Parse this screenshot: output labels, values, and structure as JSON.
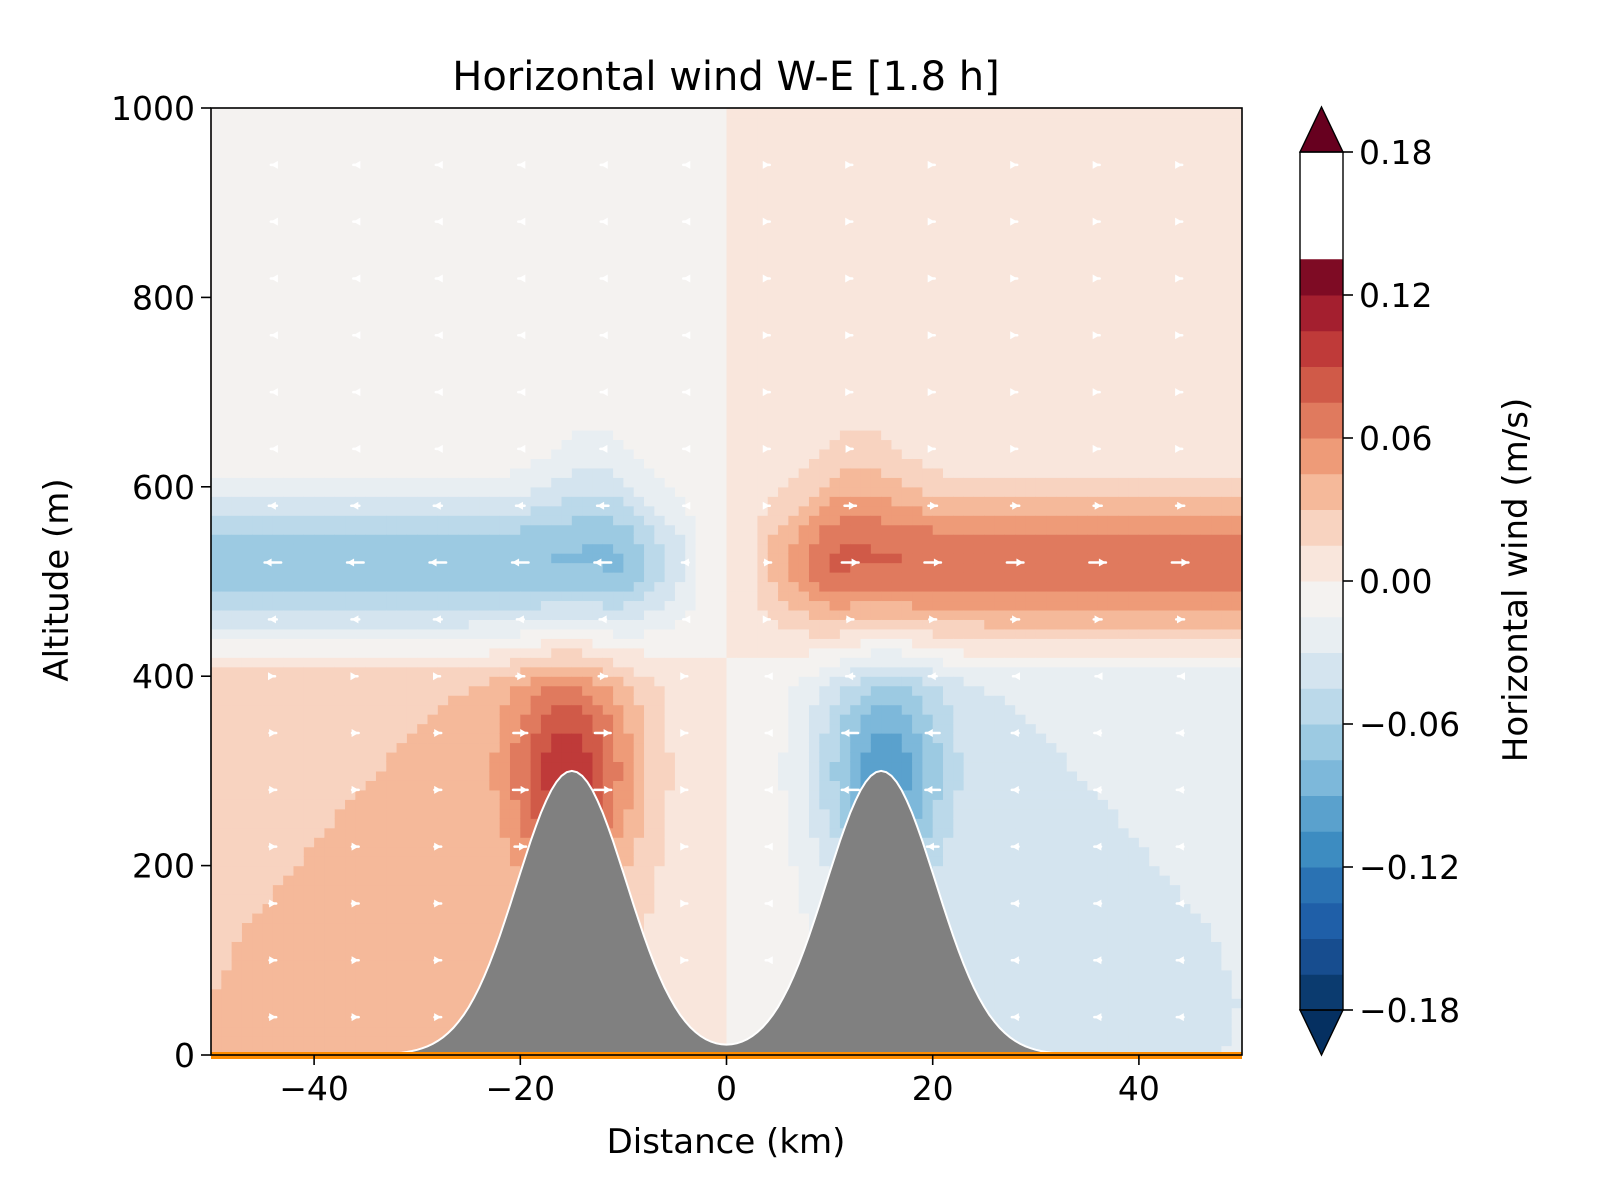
{
  "chart_data": {
    "type": "heatmap",
    "title": "Horizontal wind W-E [1.8 h]",
    "xlabel": "Distance (km)",
    "ylabel": "Altitude (m)",
    "xlim": [
      -50,
      50
    ],
    "ylim": [
      0,
      1000
    ],
    "xticks": [
      -40,
      -20,
      0,
      20,
      40
    ],
    "xtick_labels": [
      "−40",
      "−20",
      "0",
      "20",
      "40"
    ],
    "yticks": [
      0,
      200,
      400,
      600,
      800,
      1000
    ],
    "ytick_labels": [
      "0",
      "200",
      "400",
      "600",
      "800",
      "1000"
    ],
    "grid": false,
    "colorbar": {
      "label": "Horizontal wind (m/s)",
      "range": [
        -0.18,
        0.18
      ],
      "extend": "both",
      "levels": [
        -0.18,
        -0.165,
        -0.15,
        -0.135,
        -0.12,
        -0.105,
        -0.09,
        -0.075,
        -0.06,
        -0.045,
        -0.03,
        -0.015,
        0.0,
        0.015,
        0.03,
        0.045,
        0.06,
        0.075,
        0.09,
        0.105,
        0.12,
        0.135,
        0.15,
        0.165,
        0.18
      ],
      "colors": [
        "#0b3b6f",
        "#174d8f",
        "#1f5fa8",
        "#2a72b3",
        "#3d8cc1",
        "#5aa1cd",
        "#7db8da",
        "#9ccae2",
        "#bbd9ea",
        "#d4e4ef",
        "#e8eef2",
        "#f4f2f0",
        "#f9e6dc",
        "#f8d3c0",
        "#f5b99a",
        "#ee9b78",
        "#e07a5e",
        "#d05a48",
        "#bf3a39",
        "#a41f2f",
        "#7e0b24"
      ],
      "over_color": "#67001f",
      "under_color": "#053061",
      "tick_values": [
        -0.18,
        -0.12,
        -0.06,
        0.0,
        0.06,
        0.12,
        0.18
      ],
      "tick_labels": [
        "−0.18",
        "−0.12",
        "−0.06",
        "0.00",
        "0.06",
        "0.12",
        "0.18"
      ]
    },
    "terrain": {
      "description": "two gaussian hills",
      "peak_height": 300,
      "peak_positions": [
        -15,
        15
      ],
      "color": "#808080"
    },
    "ground_line_color": "#ff8c00",
    "wind_field": {
      "layers": [
        {
          "y": 0,
          "w": 0.0
        },
        {
          "y": 350,
          "w": 0.03
        },
        {
          "y": 400,
          "w": -0.01
        },
        {
          "y": 510,
          "w": 0.08
        },
        {
          "y": 700,
          "w": 0.02
        },
        {
          "y": 1000,
          "w": 0.005
        }
      ],
      "summary": "West half: positive near surface, negative aloft (~500 m, min about -0.08). East half mirrored with opposite sign."
    }
  }
}
